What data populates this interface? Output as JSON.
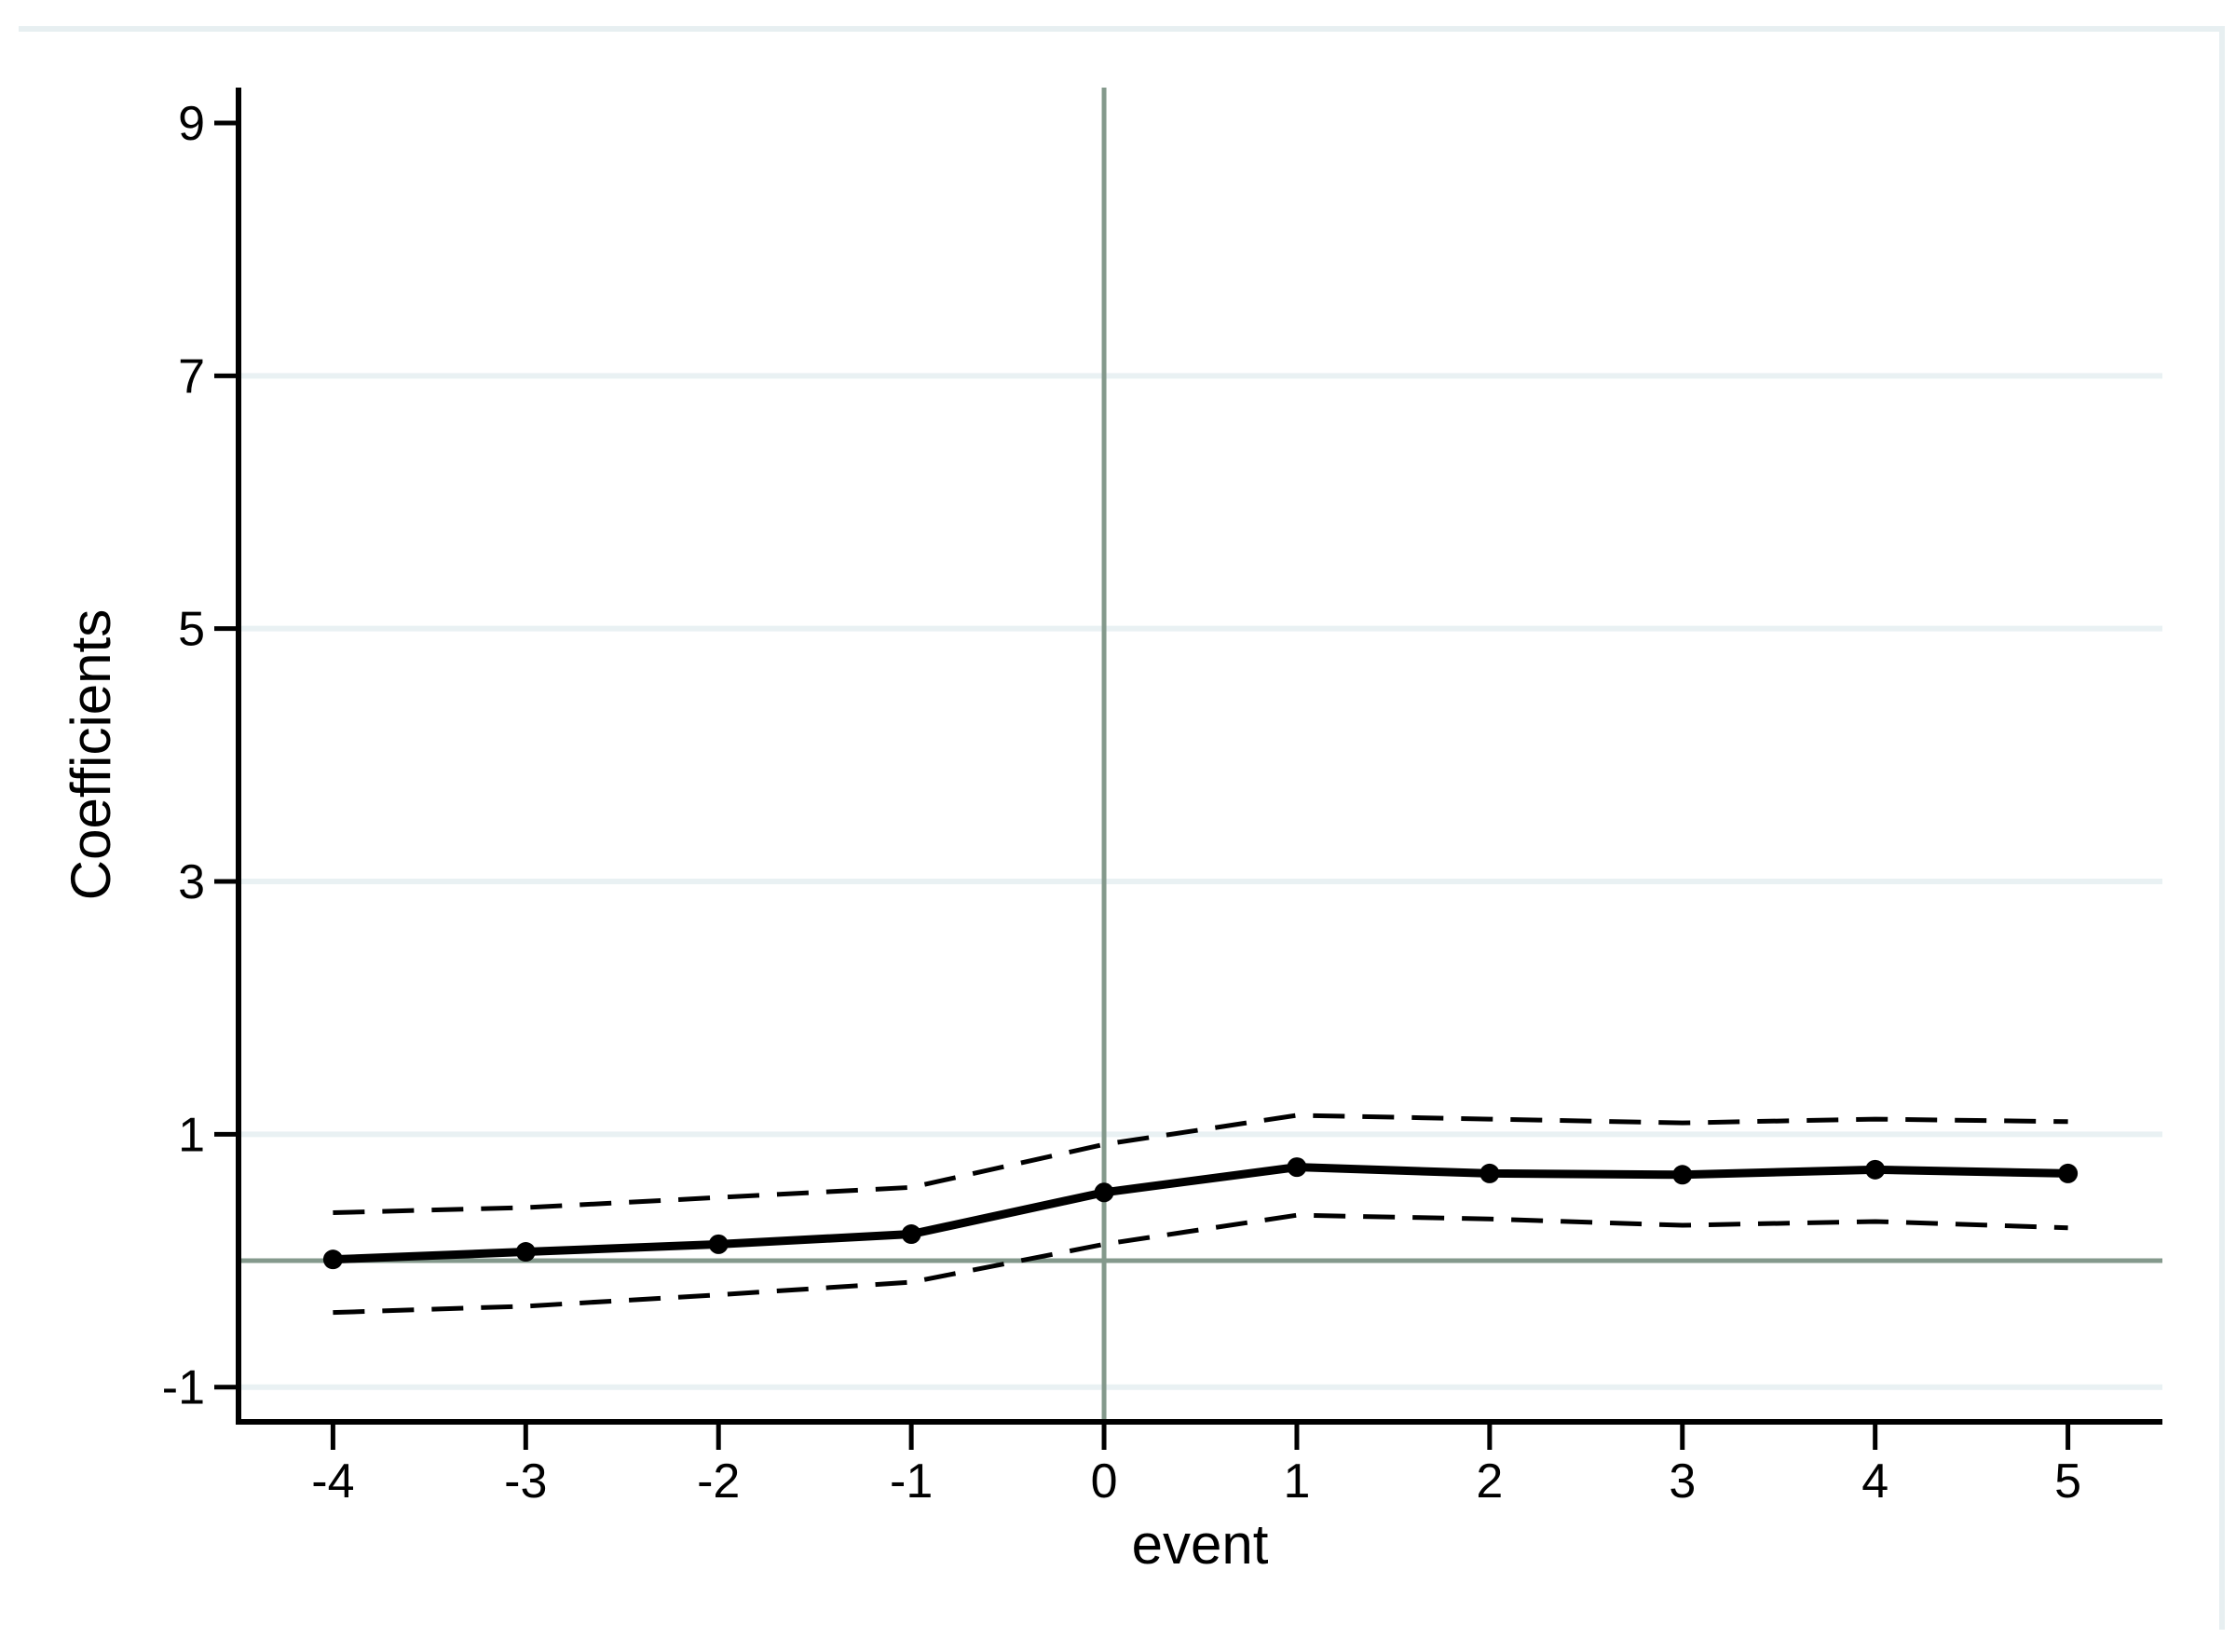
{
  "chart_data": {
    "type": "line",
    "title": "",
    "xlabel": "event",
    "ylabel": "Coefficients",
    "x": [
      -4,
      -3,
      -2,
      -1,
      0,
      1,
      2,
      3,
      4,
      5
    ],
    "series": [
      {
        "name": "coefficients",
        "style": "solid",
        "marker": "circle",
        "values": [
          0.01,
          0.07,
          0.13,
          0.21,
          0.54,
          0.74,
          0.69,
          0.68,
          0.72,
          0.69
        ]
      },
      {
        "name": "ci-upper",
        "style": "dashed",
        "marker": "none",
        "values": [
          0.38,
          0.42,
          0.5,
          0.58,
          0.92,
          1.15,
          1.12,
          1.09,
          1.12,
          1.1
        ]
      },
      {
        "name": "ci-lower",
        "style": "dashed",
        "marker": "none",
        "values": [
          -0.41,
          -0.36,
          -0.27,
          -0.17,
          0.13,
          0.36,
          0.33,
          0.28,
          0.31,
          0.26
        ]
      }
    ],
    "x_ticks": [
      -4,
      -3,
      -2,
      -1,
      0,
      1,
      2,
      3,
      4,
      5
    ],
    "x_tick_labels": [
      "-4",
      "-3",
      "-2",
      "-1",
      "0",
      "1",
      "2",
      "3",
      "4",
      "5"
    ],
    "y_ticks": [
      -1,
      1,
      3,
      5,
      7,
      9
    ],
    "y_tick_labels": [
      "-1",
      "1",
      "3",
      "5",
      "7",
      "9"
    ],
    "grid_y_ticks": [
      -1,
      1,
      3,
      5,
      7
    ],
    "xlim": [
      -4.49,
      5.49
    ],
    "ylim": [
      -1.275,
      9.28
    ],
    "reference_lines": {
      "vertical_x": 0,
      "horizontal_y": 0
    },
    "legend": "none",
    "colors": {
      "series": "#000000",
      "ci": "#1a1a1a",
      "gridline": "#e9f1f3",
      "reference_line": "#84998c",
      "axis": "#000000",
      "region_border": "#e7eff1",
      "background": "#ffffff"
    }
  }
}
